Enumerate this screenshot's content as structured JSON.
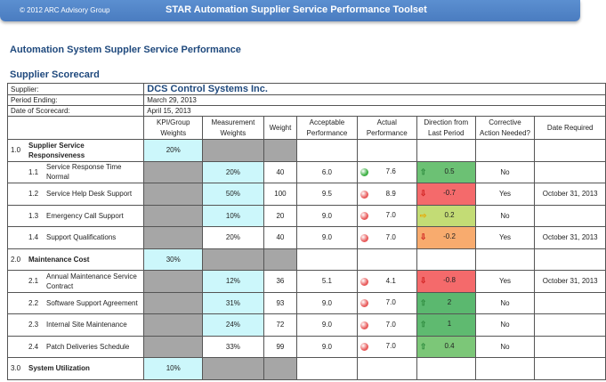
{
  "header": {
    "copyright": "© 2012 ARC Advisory Group",
    "title": "STAR Automation Supplier Service Performance Toolset"
  },
  "page_title": "Automation System Suppler Service Performance",
  "section_title": "Supplier Scorecard",
  "info": {
    "supplier_label": "Supplier:",
    "supplier": "DCS Control Systems Inc.",
    "period_label": "Period Ending:",
    "period": "March 29, 2013",
    "date_label": "Date of Scorecard:",
    "date": "April 15, 2013"
  },
  "columns": [
    "KPI/Group Weights",
    "Measurement Weights",
    "Weight",
    "Acceptable Performance",
    "Actual Performance",
    "Direction from Last Period",
    "Corrective Action Needed?",
    "Date Required"
  ],
  "rows": [
    {
      "type": "group",
      "num": "1.0",
      "name": "Supplier Service Responsiveness",
      "kpi": "20%"
    },
    {
      "type": "item",
      "num": "1.1",
      "name": "Service Response Time Normal",
      "meas": "20%",
      "weight": "40",
      "acc": "6.0",
      "status": "green",
      "actual": "7.6",
      "dir": "up",
      "delta": "0.5",
      "dircolor": "#6cc174",
      "action": "No",
      "date": ""
    },
    {
      "type": "item",
      "num": "1.2",
      "name": "Service Help Desk Support",
      "meas": "50%",
      "weight": "100",
      "acc": "9.5",
      "status": "red",
      "actual": "8.9",
      "dir": "down",
      "delta": "-0.7",
      "dircolor": "#f46a6b",
      "action": "Yes",
      "date": "October 31, 2013"
    },
    {
      "type": "item",
      "num": "1.3",
      "name": "Emergency Call Support",
      "meas": "10%",
      "weight": "20",
      "acc": "9.0",
      "status": "red",
      "actual": "7.0",
      "dir": "right",
      "delta": "0.2",
      "dircolor": "#c3dc75",
      "action": "No",
      "date": ""
    },
    {
      "type": "item",
      "num": "1.4",
      "name": "Support Qualifications",
      "meas": "20%",
      "weight": "40",
      "acc": "9.0",
      "status": "red",
      "actual": "7.0",
      "dir": "down",
      "delta": "-0.2",
      "dircolor": "#f8ab6e",
      "action": "Yes",
      "date": "October 31, 2013"
    },
    {
      "type": "group",
      "num": "2.0",
      "name": "Maintenance Cost",
      "kpi": "30%"
    },
    {
      "type": "item",
      "num": "2.1",
      "name": "Annual Maintenance Service Contract",
      "meas": "12%",
      "weight": "36",
      "acc": "5.1",
      "status": "red",
      "actual": "4.1",
      "dir": "down",
      "delta": "-0.8",
      "dircolor": "#f46a6b",
      "action": "Yes",
      "date": "October 31, 2013"
    },
    {
      "type": "item",
      "num": "2.2",
      "name": "Software Support Agreement",
      "meas": "31%",
      "weight": "93",
      "acc": "9.0",
      "status": "red",
      "actual": "7.0",
      "dir": "up",
      "delta": "2",
      "dircolor": "#5bb86f",
      "action": "No",
      "date": ""
    },
    {
      "type": "item",
      "num": "2.3",
      "name": "Internal Site Maintenance",
      "meas": "24%",
      "weight": "72",
      "acc": "9.0",
      "status": "red",
      "actual": "7.0",
      "dir": "up",
      "delta": "1",
      "dircolor": "#5fba70",
      "action": "No",
      "date": ""
    },
    {
      "type": "item",
      "num": "2.4",
      "name": "Patch Deliveries Schedule",
      "meas": "33%",
      "weight": "99",
      "acc": "9.0",
      "status": "red",
      "actual": "7.0",
      "dir": "up",
      "delta": "0.4",
      "dircolor": "#7cc778",
      "action": "No",
      "date": ""
    },
    {
      "type": "group",
      "num": "3.0",
      "name": "System Utilization",
      "kpi": "10%"
    }
  ],
  "colors": {
    "green": "#3cb043",
    "red": "#e85a5a",
    "kpi_cell": "#ccf7fb",
    "gray_cell": "#a6a6a6",
    "header_bar": "#4f81bd",
    "title": "#1f497d"
  }
}
